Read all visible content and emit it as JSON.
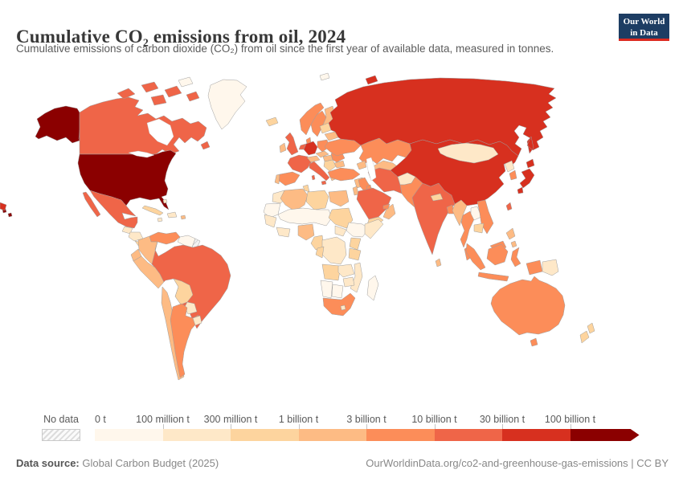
{
  "header": {
    "title": "Cumulative CO₂ emissions from oil, 2024",
    "subtitle": "Cumulative emissions of carbon dioxide (CO₂) from oil since the first year of available data, measured in tonnes.",
    "logo": {
      "line1": "Our World",
      "line2": "in Data",
      "bg_color": "#1d3d63",
      "accent_color": "#dc2a20"
    }
  },
  "legend": {
    "no_data_label": "No data",
    "tick_labels": [
      "0 t",
      "100 million t",
      "300 million t",
      "1 billion t",
      "3 billion t",
      "10 billion t",
      "30 billion t",
      "100 billion t"
    ],
    "bin_colors": [
      "#fff7ec",
      "#fee8c8",
      "#fdd49e",
      "#fdbb84",
      "#fc8d59",
      "#ef6548",
      "#d7301f",
      "#8b0000"
    ]
  },
  "footer": {
    "source_label": "Data source:",
    "source_value": "Global Carbon Budget (2025)",
    "attribution": "OurWorldinData.org/co2-and-greenhouse-gas-emissions | CC BY"
  },
  "chart_data": {
    "type": "choropleth_map",
    "title": "Cumulative CO₂ emissions from oil, 2024",
    "unit": "tonnes",
    "bins": [
      "0 t – 100 million t",
      "100 – 300 million t",
      "300 million t – 1 billion t",
      "1 – 3 billion t",
      "3 – 10 billion t",
      "10 – 30 billion t",
      "30 – 100 billion t",
      "100+ billion t"
    ],
    "bin_colors": [
      "#fff7ec",
      "#fee8c8",
      "#fdd49e",
      "#fdbb84",
      "#fc8d59",
      "#ef6548",
      "#d7301f",
      "#8b0000"
    ],
    "no_data_style": "hatched",
    "countries": {
      "united-states": {
        "name": "United States",
        "bin": 8
      },
      "canada": {
        "name": "Canada",
        "bin": 6
      },
      "greenland": {
        "name": "Greenland",
        "bin": 1
      },
      "mexico": {
        "name": "Mexico",
        "bin": 6
      },
      "guatemala": {
        "name": "Guatemala",
        "bin": 2
      },
      "honduras-nicaragua": {
        "name": "Honduras / Nicaragua",
        "bin": 2
      },
      "costa-rica-panama": {
        "name": "Costa Rica / Panama",
        "bin": 3
      },
      "cuba": {
        "name": "Cuba",
        "bin": 3
      },
      "hispaniola": {
        "name": "Dominican Republic / Haiti",
        "bin": 2
      },
      "jamaica": {
        "name": "Jamaica",
        "bin": 2
      },
      "bahamas": {
        "name": "Bahamas",
        "bin": 2
      },
      "puerto-rico": {
        "name": "Puerto Rico",
        "bin": 4
      },
      "venezuela": {
        "name": "Venezuela",
        "bin": 5
      },
      "colombia": {
        "name": "Colombia",
        "bin": 4
      },
      "guyanas": {
        "name": "Guyana / Suriname",
        "bin": 1
      },
      "french-guiana": {
        "name": "French Guiana",
        "bin": null
      },
      "ecuador": {
        "name": "Ecuador",
        "bin": 4
      },
      "peru": {
        "name": "Peru",
        "bin": 4
      },
      "brazil": {
        "name": "Brazil",
        "bin": 6
      },
      "bolivia": {
        "name": "Bolivia",
        "bin": 3
      },
      "paraguay": {
        "name": "Paraguay",
        "bin": 2
      },
      "chile": {
        "name": "Chile",
        "bin": 4
      },
      "argentina": {
        "name": "Argentina",
        "bin": 5
      },
      "uruguay": {
        "name": "Uruguay",
        "bin": 2
      },
      "iceland": {
        "name": "Iceland",
        "bin": 3
      },
      "norway": {
        "name": "Norway",
        "bin": 5
      },
      "svalbard": {
        "name": "Svalbard",
        "bin": 1
      },
      "sweden": {
        "name": "Sweden",
        "bin": 5
      },
      "finland": {
        "name": "Finland",
        "bin": 4
      },
      "denmark": {
        "name": "Denmark",
        "bin": 5
      },
      "united-kingdom": {
        "name": "United Kingdom",
        "bin": 6
      },
      "ireland": {
        "name": "Ireland",
        "bin": 4
      },
      "france": {
        "name": "France",
        "bin": 6
      },
      "spain": {
        "name": "Spain",
        "bin": 5
      },
      "portugal": {
        "name": "Portugal",
        "bin": 4
      },
      "germany": {
        "name": "Germany",
        "bin": 7
      },
      "benelux": {
        "name": "Netherlands / Belgium",
        "bin": 6
      },
      "poland": {
        "name": "Poland",
        "bin": 5
      },
      "czech-slovakia": {
        "name": "Czechia / Slovakia",
        "bin": 4
      },
      "austria-switzerland": {
        "name": "Austria / Switzerland",
        "bin": 4
      },
      "italy": {
        "name": "Italy",
        "bin": 6
      },
      "hungary": {
        "name": "Hungary",
        "bin": 4
      },
      "balkans": {
        "name": "Western Balkans",
        "bin": 3
      },
      "greece": {
        "name": "Greece",
        "bin": 4
      },
      "romania": {
        "name": "Romania",
        "bin": 5
      },
      "bulgaria": {
        "name": "Bulgaria",
        "bin": 4
      },
      "ukraine": {
        "name": "Ukraine",
        "bin": 5
      },
      "belarus": {
        "name": "Belarus",
        "bin": 4
      },
      "baltics": {
        "name": "Baltic states",
        "bin": 3
      },
      "russia": {
        "name": "Russia",
        "bin": 7
      },
      "kazakhstan": {
        "name": "Kazakhstan",
        "bin": 5
      },
      "uzbekistan-turkmenistan": {
        "name": "Uzbekistan / Turkmenistan",
        "bin": 4
      },
      "caucasus": {
        "name": "Georgia / Azerbaijan",
        "bin": 4
      },
      "turkey": {
        "name": "Turkey",
        "bin": 5
      },
      "syria": {
        "name": "Syria",
        "bin": 4
      },
      "israel-jordan": {
        "name": "Israel / Jordan",
        "bin": 4
      },
      "iraq": {
        "name": "Iraq",
        "bin": 5
      },
      "iran": {
        "name": "Iran",
        "bin": 6
      },
      "afghanistan": {
        "name": "Afghanistan",
        "bin": 2
      },
      "pakistan": {
        "name": "Pakistan",
        "bin": 5
      },
      "india": {
        "name": "India",
        "bin": 6
      },
      "nepal": {
        "name": "Nepal",
        "bin": 3
      },
      "bangladesh": {
        "name": "Bangladesh",
        "bin": 5
      },
      "sri-lanka": {
        "name": "Sri Lanka",
        "bin": 4
      },
      "saudi-arabia": {
        "name": "Saudi Arabia",
        "bin": 6
      },
      "yemen": {
        "name": "Yemen",
        "bin": 3
      },
      "oman": {
        "name": "Oman",
        "bin": 4
      },
      "uae": {
        "name": "United Arab Emirates",
        "bin": 5
      },
      "kuwait": {
        "name": "Kuwait",
        "bin": 5
      },
      "china": {
        "name": "China",
        "bin": 7
      },
      "mongolia": {
        "name": "Mongolia",
        "bin": 2
      },
      "north-korea": {
        "name": "North Korea",
        "bin": 2
      },
      "south-korea": {
        "name": "South Korea",
        "bin": 5
      },
      "japan": {
        "name": "Japan",
        "bin": 7
      },
      "taiwan": {
        "name": "Taiwan",
        "bin": 6
      },
      "myanmar": {
        "name": "Myanmar",
        "bin": 4
      },
      "thailand": {
        "name": "Thailand",
        "bin": 5
      },
      "laos": {
        "name": "Laos",
        "bin": 1
      },
      "vietnam": {
        "name": "Vietnam",
        "bin": 5
      },
      "cambodia": {
        "name": "Cambodia",
        "bin": 3
      },
      "malaysia": {
        "name": "Malaysia",
        "bin": 5
      },
      "indonesia": {
        "name": "Indonesia",
        "bin": 5
      },
      "philippines": {
        "name": "Philippines",
        "bin": 4
      },
      "papua-new-guinea": {
        "name": "Papua New Guinea",
        "bin": 2
      },
      "australia": {
        "name": "Australia",
        "bin": 5
      },
      "new-zealand": {
        "name": "New Zealand",
        "bin": 3
      },
      "morocco": {
        "name": "Morocco",
        "bin": 2
      },
      "western-sahara": {
        "name": "Western Sahara",
        "bin": 1
      },
      "algeria": {
        "name": "Algeria",
        "bin": 4
      },
      "tunisia": {
        "name": "Tunisia",
        "bin": 3
      },
      "libya": {
        "name": "Libya",
        "bin": 3
      },
      "egypt": {
        "name": "Egypt",
        "bin": 4
      },
      "mali-niger-chad": {
        "name": "Mali / Niger / Chad",
        "bin": 1
      },
      "senegal-guinea": {
        "name": "Senegal / Guinea",
        "bin": 2
      },
      "ivory-ghana": {
        "name": "Côte d'Ivoire / Ghana",
        "bin": 2
      },
      "nigeria": {
        "name": "Nigeria",
        "bin": 4
      },
      "cameroon-gabon": {
        "name": "Cameroon / Gabon",
        "bin": 3
      },
      "sudan": {
        "name": "Sudan",
        "bin": 3
      },
      "south-sudan": {
        "name": "South Sudan",
        "bin": 2
      },
      "ethiopia": {
        "name": "Ethiopia",
        "bin": 1
      },
      "somalia": {
        "name": "Somalia",
        "bin": 2
      },
      "kenya": {
        "name": "Kenya",
        "bin": 3
      },
      "tanzania": {
        "name": "Tanzania",
        "bin": 3
      },
      "drc": {
        "name": "Democratic Republic of Congo",
        "bin": 2
      },
      "congo": {
        "name": "Congo",
        "bin": 3
      },
      "angola": {
        "name": "Angola",
        "bin": 3
      },
      "zambia": {
        "name": "Zambia",
        "bin": 2
      },
      "mozambique": {
        "name": "Mozambique",
        "bin": 2
      },
      "zimbabwe": {
        "name": "Zimbabwe",
        "bin": 2
      },
      "namibia": {
        "name": "Namibia",
        "bin": 1
      },
      "botswana": {
        "name": "Botswana",
        "bin": 1
      },
      "south-africa": {
        "name": "South Africa",
        "bin": 5
      },
      "lesotho": {
        "name": "Lesotho",
        "bin": 2
      },
      "madagascar": {
        "name": "Madagascar",
        "bin": 1
      }
    }
  }
}
